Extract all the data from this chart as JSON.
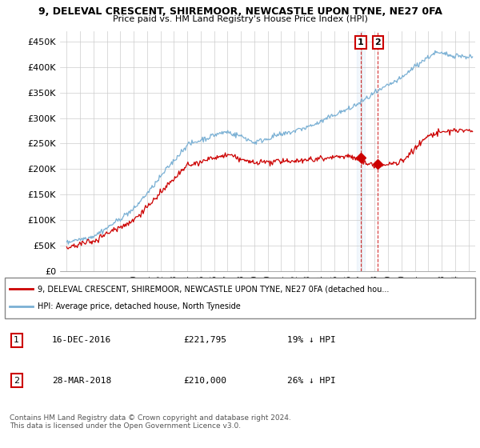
{
  "title_line1": "9, DELEVAL CRESCENT, SHIREMOOR, NEWCASTLE UPON TYNE, NE27 0FA",
  "title_line2": "Price paid vs. HM Land Registry's House Price Index (HPI)",
  "ylabel_ticks": [
    "£0",
    "£50K",
    "£100K",
    "£150K",
    "£200K",
    "£250K",
    "£300K",
    "£350K",
    "£400K",
    "£450K"
  ],
  "ytick_values": [
    0,
    50000,
    100000,
    150000,
    200000,
    250000,
    300000,
    350000,
    400000,
    450000
  ],
  "ylim": [
    0,
    470000
  ],
  "xlim_start": 1994.5,
  "xlim_end": 2025.5,
  "hpi_color": "#7ab0d4",
  "price_color": "#cc0000",
  "legend_label_red": "9, DELEVAL CRESCENT, SHIREMOOR, NEWCASTLE UPON TYNE, NE27 0FA (detached hou...",
  "legend_label_blue": "HPI: Average price, detached house, North Tyneside",
  "transaction1_date": "16-DEC-2016",
  "transaction1_price": "£221,795",
  "transaction1_note": "19% ↓ HPI",
  "transaction1_x": 2016.96,
  "transaction1_y": 221795,
  "transaction2_date": "28-MAR-2018",
  "transaction2_price": "£210,000",
  "transaction2_note": "26% ↓ HPI",
  "transaction2_x": 2018.24,
  "transaction2_y": 210000,
  "vline1_x": 2016.96,
  "vline2_x": 2018.24,
  "footer_text": "Contains HM Land Registry data © Crown copyright and database right 2024.\nThis data is licensed under the Open Government Licence v3.0.",
  "background_color": "#ffffff",
  "plot_bg_color": "#ffffff",
  "grid_color": "#cccccc"
}
